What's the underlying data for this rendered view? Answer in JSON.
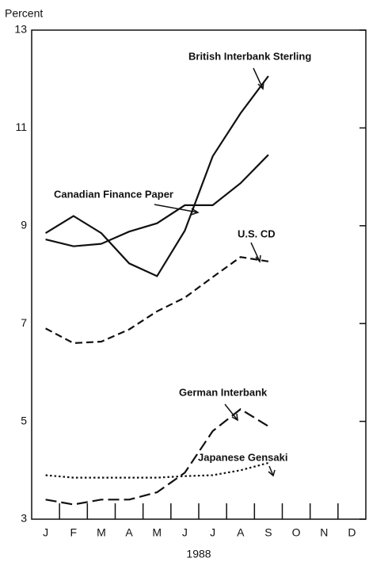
{
  "chart_data": {
    "type": "line",
    "y_label": "Percent",
    "x_label": "1988",
    "categories": [
      "J",
      "F",
      "M",
      "A",
      "M",
      "J",
      "J",
      "A",
      "S",
      "O",
      "N",
      "D"
    ],
    "ylim": [
      3,
      13
    ],
    "yticks": [
      3,
      5,
      7,
      9,
      11,
      13
    ],
    "series": [
      {
        "name": "British Interbank Sterling",
        "color": "#111111",
        "dash": "solid",
        "values": [
          8.85,
          9.2,
          8.85,
          8.23,
          7.97,
          8.9,
          10.42,
          11.3,
          12.06,
          null,
          null,
          null
        ]
      },
      {
        "name": "Canadian Finance Paper",
        "color": "#111111",
        "dash": "solid",
        "values": [
          8.72,
          8.58,
          8.63,
          8.88,
          9.05,
          9.42,
          9.42,
          9.87,
          10.45,
          null,
          null,
          null
        ]
      },
      {
        "name": "U.S. CD",
        "color": "#111111",
        "dash": "dashed",
        "values": [
          6.9,
          6.6,
          6.63,
          6.88,
          7.25,
          7.53,
          7.95,
          8.36,
          8.27,
          null,
          null,
          null
        ]
      },
      {
        "name": "German Interbank",
        "color": "#111111",
        "dash": "longdash",
        "values": [
          3.4,
          3.3,
          3.4,
          3.4,
          3.55,
          3.95,
          4.8,
          5.25,
          4.9,
          null,
          null,
          null
        ]
      },
      {
        "name": "Japanese Gensaki",
        "color": "#111111",
        "dash": "dotted",
        "values": [
          3.9,
          3.85,
          3.85,
          3.85,
          3.85,
          3.88,
          3.9,
          4.0,
          4.15,
          null,
          null,
          null
        ]
      }
    ]
  }
}
